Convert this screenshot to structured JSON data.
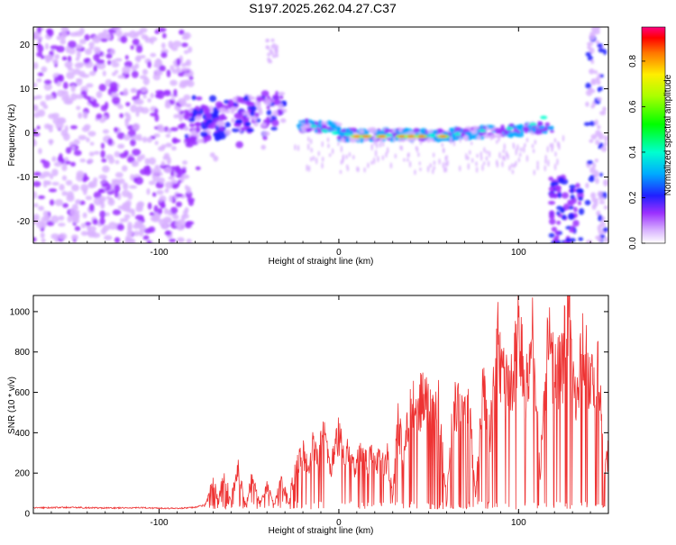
{
  "figure": {
    "title": "S197.2025.262.04.27.C37"
  },
  "chart_data": [
    {
      "type": "heatmap",
      "name": "spectrogram",
      "xlabel": "Height of straight line (km)",
      "ylabel": "Frequency (Hz)",
      "xlim": [
        -170,
        150
      ],
      "ylim": [
        -25,
        24
      ],
      "xticks": [
        -100,
        0,
        100
      ],
      "yticks": [
        -20,
        -10,
        0,
        10,
        20
      ],
      "colorbar": {
        "label": "Normalized spectral amplitude",
        "range": [
          0,
          0.95
        ],
        "ticks": [
          0.0,
          0.2,
          0.4,
          0.6,
          0.8
        ],
        "tick_labels": [
          "0.0",
          "0.2",
          "0.4",
          "0.6",
          "0.8"
        ]
      },
      "features": [
        {
          "x_range": [
            -170,
            -82
          ],
          "freq_range": [
            -25,
            24
          ],
          "amplitude": 0.1,
          "description": "noise"
        },
        {
          "x_range": [
            -85,
            -30
          ],
          "freq_range": [
            -2,
            8
          ],
          "amplitude": 0.3
        },
        {
          "x_range": [
            -20,
            120
          ],
          "freq_range": [
            -1,
            3
          ],
          "amplitude": 0.4
        },
        {
          "x_range": [
            5,
            60
          ],
          "freq_center": -0.5,
          "amplitude": 0.9
        },
        {
          "x_range": [
            118,
            135
          ],
          "freq_range": [
            -25,
            -10
          ],
          "amplitude": 0.4
        },
        {
          "x_range": [
            138,
            148
          ],
          "freq_range": [
            -25,
            24
          ],
          "amplitude": 0.3
        }
      ]
    },
    {
      "type": "line",
      "name": "snr",
      "xlabel": "Height of straight line (km)",
      "ylabel": "SNR (10 * v/v)",
      "xlim": [
        -170,
        150
      ],
      "ylim": [
        0,
        1080
      ],
      "xticks": [
        -100,
        0,
        100
      ],
      "yticks": [
        0,
        200,
        400,
        600,
        800,
        1000
      ],
      "color": "#ee3333",
      "series": [
        {
          "name": "SNR",
          "x": [
            -170,
            -150,
            -130,
            -110,
            -90,
            -80,
            -74,
            -70,
            -67,
            -64,
            -60,
            -56,
            -52,
            -48,
            -44,
            -40,
            -36,
            -32,
            -28,
            -24,
            -20,
            -17,
            -14,
            -11,
            -8,
            -5,
            -2,
            0,
            3,
            6,
            9,
            12,
            15,
            18,
            21,
            24,
            27,
            30,
            33,
            36,
            40,
            45,
            50,
            55,
            60,
            64,
            68,
            72,
            76,
            80,
            84,
            88,
            92,
            96,
            100,
            104,
            108,
            112,
            116,
            120,
            124,
            128,
            132,
            136,
            140,
            144,
            148,
            150
          ],
          "y": [
            28,
            30,
            27,
            28,
            25,
            30,
            45,
            160,
            60,
            190,
            80,
            210,
            40,
            180,
            60,
            140,
            50,
            160,
            60,
            220,
            300,
            230,
            350,
            280,
            420,
            200,
            310,
            400,
            260,
            320,
            210,
            300,
            250,
            290,
            270,
            230,
            280,
            80,
            450,
            300,
            520,
            560,
            540,
            580,
            60,
            560,
            530,
            600,
            80,
            610,
            380,
            850,
            640,
            660,
            900,
            600,
            880,
            200,
            860,
            700,
            720,
            960,
            520,
            880,
            600,
            800,
            200,
            300
          ]
        }
      ]
    }
  ]
}
